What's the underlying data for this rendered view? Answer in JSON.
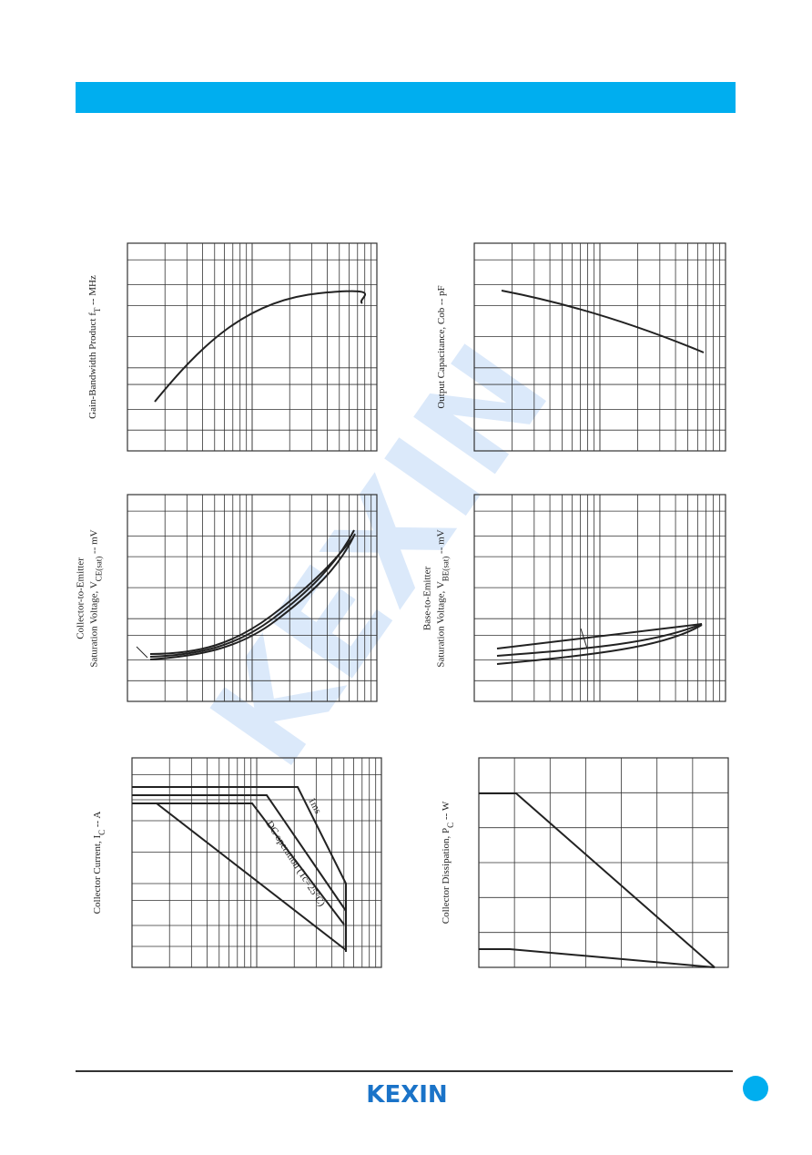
{
  "watermark": "KEXIN",
  "charts": [
    {
      "ylabel": [
        {
          "text": "Gain-Bandwidth Product f",
          "sub": "T",
          "tail": " -- MHz"
        }
      ]
    },
    {
      "ylabel": [
        {
          "text": "Output Capacitance, Cob  --  pF"
        }
      ]
    },
    {
      "ylabel": [
        {
          "text": "Collector-to-Emitter"
        },
        {
          "text": "Saturation Voltage, V",
          "sub": "CE(sat)",
          "tail": " -- mV"
        }
      ]
    },
    {
      "ylabel": [
        {
          "text": "Base-to-Emitter"
        },
        {
          "text": "Saturation Voltage, V",
          "sub": "BE(sat)",
          "tail": " -- mV"
        }
      ]
    },
    {
      "ylabel": [
        {
          "text": "Collector Current, I",
          "sub": "C",
          "tail": " -- A"
        }
      ],
      "annotations": [
        "1ms",
        "DC operation (Tc=25°C)"
      ]
    },
    {
      "ylabel": [
        {
          "text": "Collector Dissipation, P",
          "sub": "C",
          "tail": " -- W"
        }
      ]
    }
  ],
  "footer": {
    "logo": "KEXIN"
  }
}
